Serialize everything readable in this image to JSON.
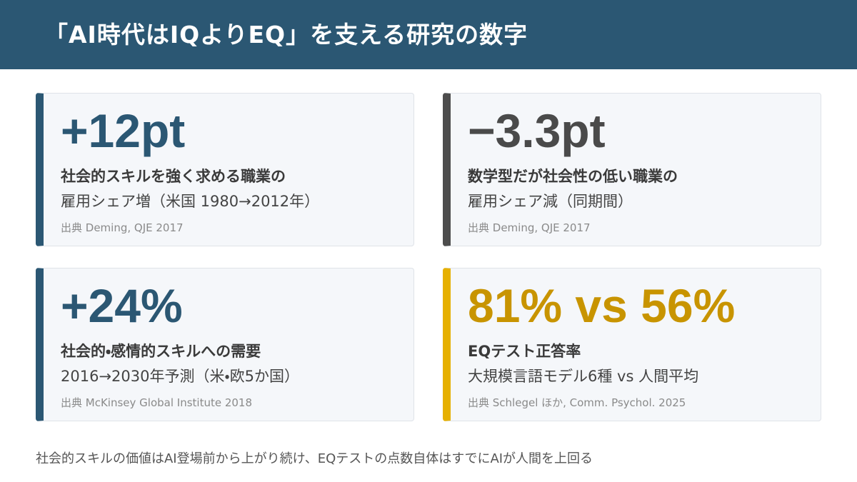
{
  "header": {
    "title": "「AI時代はIQよりEQ」を支える研究の数字"
  },
  "cards": [
    {
      "stat": "+12pt",
      "title": "社会的スキルを強く求める職業の",
      "subtitle": "雇用シェア増（米国 1980→2012年）",
      "source": "出典 Deming, QJE 2017"
    },
    {
      "stat": "−3.3pt",
      "title": "数学型だが社会性の低い職業の",
      "subtitle": "雇用シェア減（同期間）",
      "source": "出典 Deming, QJE 2017"
    },
    {
      "stat": "+24%",
      "title": "社会的・感情的スキルへの需要",
      "subtitle": "2016→2030年予測（米・欧5か国）",
      "source": "出典 McKinsey Global Institute 2018"
    },
    {
      "stat": "81% vs 56%",
      "title": "EQテスト正答率",
      "subtitle": "大規模言語モデル6種 vs 人間平均",
      "source": "出典 Schlegel ほか, Comm. Psychol. 2025"
    }
  ],
  "footer": "社会的スキルの価値はAI登場前から上がり続け、EQテストの点数自体はすでにAIが人間を上回る"
}
